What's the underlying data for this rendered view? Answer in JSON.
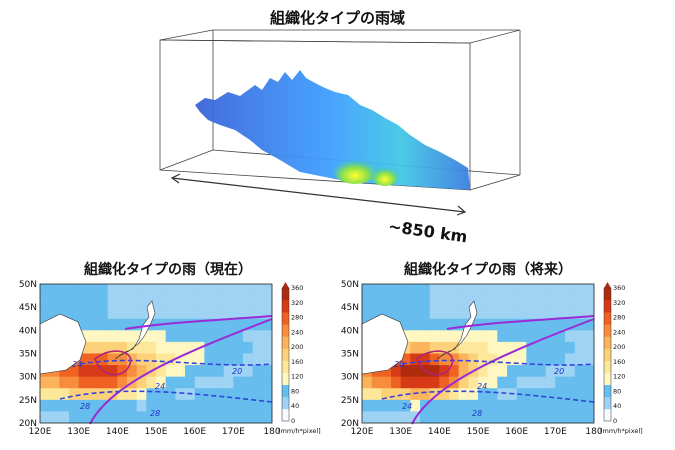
{
  "diagram": {
    "title": "組織化タイプの雨域",
    "scale_label": "~850 km"
  },
  "maps": [
    {
      "title": "組織化タイプの雨（現在）",
      "contour_labels": [
        "24",
        "20",
        "24",
        "28",
        "28"
      ]
    },
    {
      "title": "組織化タイプの雨（将来）",
      "contour_labels": [
        "20",
        "20",
        "24",
        "24",
        "28"
      ]
    }
  ],
  "axes": {
    "y_ticks": [
      "50N",
      "45N",
      "40N",
      "35N",
      "30N",
      "25N",
      "20N"
    ],
    "x_ticks": [
      "120E",
      "130E",
      "140E",
      "150E",
      "160E",
      "170E",
      "180"
    ]
  },
  "colorbar": {
    "ticks": [
      "360",
      "320",
      "280",
      "240",
      "200",
      "160",
      "120",
      "80",
      "40",
      "0"
    ],
    "unit": "[mm/h*pixel]",
    "colors": [
      "#f7fbff",
      "#9fd3f3",
      "#66bdee",
      "#fff7c2",
      "#fde79a",
      "#fcd179",
      "#fbb35c",
      "#f78c3c",
      "#ef6224",
      "#d73a16",
      "#b02a0e"
    ]
  }
}
